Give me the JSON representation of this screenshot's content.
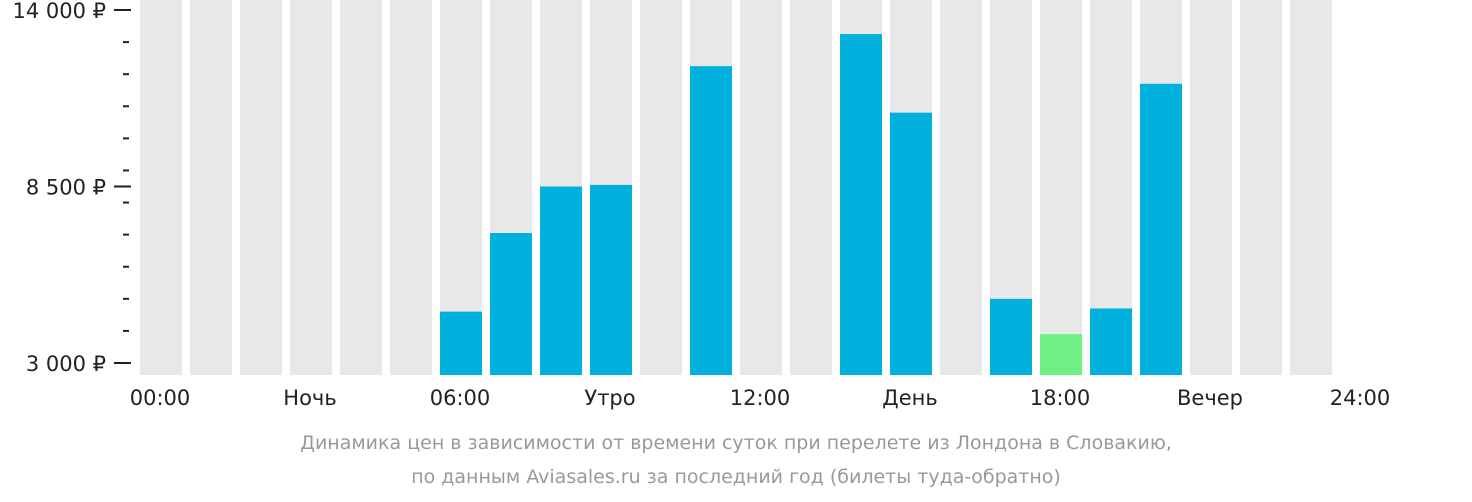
{
  "chart_data": {
    "type": "bar",
    "categories": [
      "00:00",
      "01:00",
      "02:00",
      "03:00",
      "04:00",
      "05:00",
      "06:00",
      "07:00",
      "08:00",
      "09:00",
      "10:00",
      "11:00",
      "12:00",
      "13:00",
      "14:00",
      "15:00",
      "16:00",
      "17:00",
      "18:00",
      "19:00",
      "20:00",
      "21:00",
      "22:00",
      "23:00"
    ],
    "values": [
      null,
      null,
      null,
      null,
      null,
      null,
      4600,
      7050,
      8500,
      8550,
      null,
      12250,
      null,
      null,
      13250,
      10800,
      null,
      5000,
      3900,
      4700,
      11700,
      null,
      null,
      null
    ],
    "highlight_index": 18,
    "ylim": [
      3000,
      14000
    ],
    "yticks": [
      {
        "value": 14000,
        "label": "14 000 ₽"
      },
      {
        "value": 8500,
        "label": "8 500 ₽"
      },
      {
        "value": 3000,
        "label": "3 000 ₽"
      }
    ],
    "yminor_step": 1000,
    "xlabels": [
      {
        "slot": 0,
        "label": "00:00"
      },
      {
        "slot": 3,
        "label": "Ночь"
      },
      {
        "slot": 6,
        "label": "06:00"
      },
      {
        "slot": 9,
        "label": "Утро"
      },
      {
        "slot": 12,
        "label": "12:00"
      },
      {
        "slot": 15,
        "label": "День"
      },
      {
        "slot": 18,
        "label": "18:00"
      },
      {
        "slot": 21,
        "label": "Вечер"
      },
      {
        "slot": 24,
        "label": "24:00"
      }
    ],
    "colors": {
      "bar": "#00b1de",
      "highlight": "#6ef083",
      "background_bar": "#e8e8e8",
      "axis": "#222222"
    }
  },
  "caption": {
    "line1": "Динамика цен в зависимости от времени суток при перелете из Лондона в Словакию,",
    "line2": "по данным Aviasales.ru за последний год (билеты туда-обратно)"
  }
}
